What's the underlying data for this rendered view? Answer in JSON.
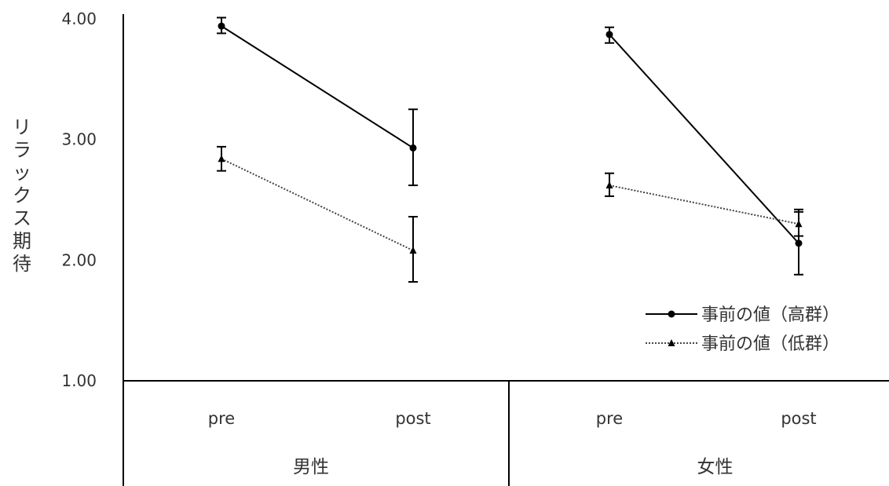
{
  "chart_data": {
    "type": "line",
    "ylabel": "リラックス期待",
    "ylim": [
      1.0,
      4.0
    ],
    "y_ticks": [
      "1.00",
      "2.00",
      "3.00",
      "4.00"
    ],
    "grid": false,
    "groups": [
      {
        "label": "男性",
        "categories": [
          "pre",
          "post"
        ]
      },
      {
        "label": "女性",
        "categories": [
          "pre",
          "post"
        ]
      }
    ],
    "legend_position": "bottom-right",
    "series": [
      {
        "name": "事前の値（高群）",
        "line_style": "solid",
        "marker": "circle",
        "groups": [
          {
            "group": "男性",
            "values": [
              3.94,
              2.93
            ],
            "error_low": [
              3.88,
              2.62
            ],
            "error_high": [
              4.01,
              3.25
            ]
          },
          {
            "group": "女性",
            "values": [
              3.87,
              2.14
            ],
            "error_low": [
              3.8,
              1.88
            ],
            "error_high": [
              3.93,
              2.4
            ]
          }
        ]
      },
      {
        "name": "事前の値（低群）",
        "line_style": "dotted",
        "marker": "triangle",
        "groups": [
          {
            "group": "男性",
            "values": [
              2.84,
              2.08
            ],
            "error_low": [
              2.74,
              1.82
            ],
            "error_high": [
              2.94,
              2.36
            ]
          },
          {
            "group": "女性",
            "values": [
              2.62,
              2.3
            ],
            "error_low": [
              2.53,
              2.2
            ],
            "error_high": [
              2.72,
              2.42
            ]
          }
        ]
      }
    ]
  }
}
